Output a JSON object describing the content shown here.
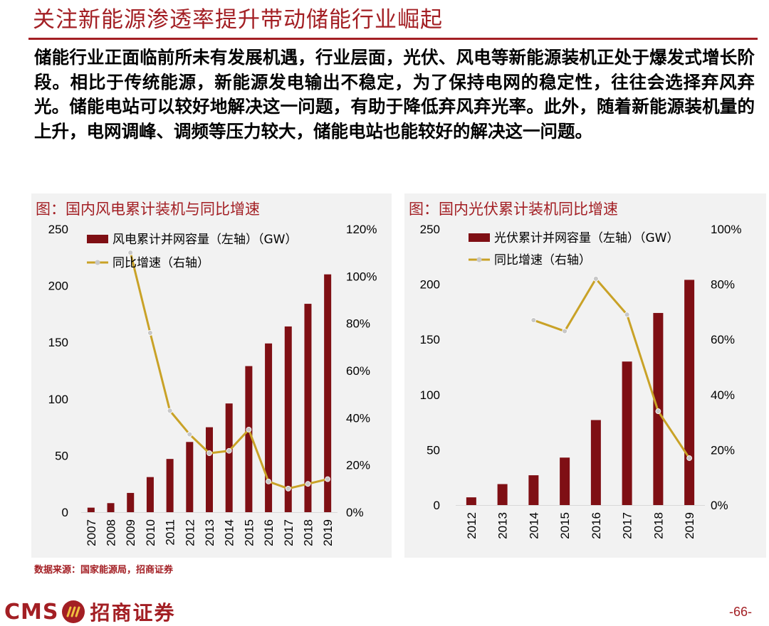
{
  "header": {
    "title": "关注新能源渗透率提升带动储能行业崛起"
  },
  "body_text": "储能行业正面临前所未有发展机遇，行业层面，光伏、风电等新能源装机正处于爆发式增长阶段。相比于传统能源，新能源发电输出不稳定，为了保持电网的稳定性，往往会选择弃风弃光。储能电站可以较好地解决这一问题，有助于降低弃风弃光率。此外，随着新能源装机量的上升，电网调峰、调频等压力较大，储能电站也能较好的解决这一问题。",
  "footer": {
    "source": "数据来源：国家能源局，招商证券",
    "logo_text": "CMS",
    "logo_cn": "招商证券",
    "page_number": "-66-"
  },
  "colors": {
    "accent": "#a31f24",
    "bar": "#7f0f14",
    "line": "#c9a227",
    "marker": "#c8c8c8",
    "panel_bg": "#f2f2f2"
  },
  "chart_data": [
    {
      "type": "bar+line",
      "title": "图：国内风电累计装机与同比增速",
      "categories": [
        "2007",
        "2008",
        "2009",
        "2010",
        "2011",
        "2012",
        "2013",
        "2014",
        "2015",
        "2016",
        "2017",
        "2018",
        "2019"
      ],
      "series": [
        {
          "name": "风电累计并网容量（左轴）（GW）",
          "type": "bar",
          "axis": "left",
          "values": [
            4,
            8,
            17,
            31,
            47,
            62,
            75,
            96,
            129,
            149,
            164,
            184,
            210
          ]
        },
        {
          "name": "同比增速（右轴）",
          "type": "line",
          "axis": "right",
          "values": [
            null,
            null,
            110,
            76,
            43,
            33,
            25,
            26,
            35,
            13,
            10,
            12,
            14
          ]
        }
      ],
      "left_axis": {
        "min": 0,
        "max": 250,
        "ticks": [
          "0",
          "50",
          "100",
          "150",
          "200",
          "250"
        ]
      },
      "right_axis": {
        "min": 0,
        "max": 120,
        "ticks": [
          "0%",
          "20%",
          "40%",
          "60%",
          "80%",
          "100%",
          "120%"
        ]
      }
    },
    {
      "type": "bar+line",
      "title": "图：国内光伏累计装机同比增速",
      "categories": [
        "2012",
        "2013",
        "2014",
        "2015",
        "2016",
        "2017",
        "2018",
        "2019"
      ],
      "series": [
        {
          "name": "光伏累计并网容量（左轴）（GW）",
          "type": "bar",
          "axis": "left",
          "values": [
            7,
            19,
            27,
            43,
            77,
            130,
            174,
            204
          ]
        },
        {
          "name": "同比增速（右轴）",
          "type": "line",
          "axis": "right",
          "values": [
            null,
            null,
            67,
            63,
            82,
            69,
            34,
            17
          ]
        }
      ],
      "left_axis": {
        "min": 0,
        "max": 250,
        "ticks": [
          "0",
          "50",
          "100",
          "150",
          "200",
          "250"
        ]
      },
      "right_axis": {
        "min": 0,
        "max": 100,
        "ticks": [
          "0%",
          "20%",
          "40%",
          "60%",
          "80%",
          "100%"
        ]
      }
    }
  ]
}
